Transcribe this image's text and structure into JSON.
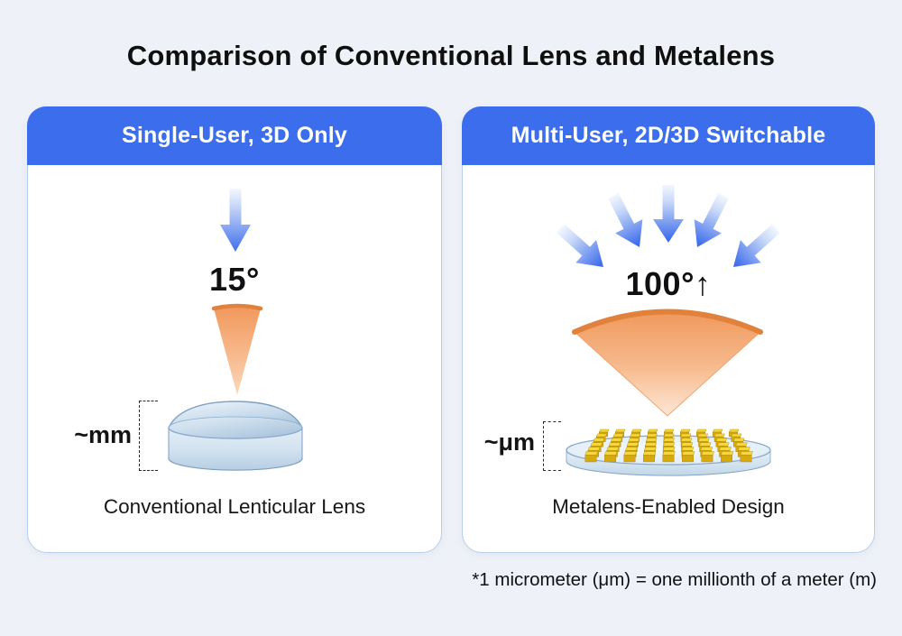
{
  "page": {
    "title": "Comparison of Conventional Lens and Metalens",
    "footnote": "*1 micrometer (μm) = one millionth of a meter (m)"
  },
  "colors": {
    "background": "#eef1f7",
    "header_blue": "#3c6dec",
    "arrow_blue": "#3f6eec",
    "orange_rim": "#e0813c",
    "orange_fill": "#f39e62",
    "glass_blue": "#bed3e6",
    "gold": "#d8a90c",
    "panel_border": "#b9cdec"
  },
  "left_panel": {
    "header": "Single-User, 3D Only",
    "angle_label": "15°",
    "scale_label": "~mm",
    "caption": "Conventional Lenticular Lens"
  },
  "right_panel": {
    "header": "Multi-User, 2D/3D Switchable",
    "angle_label": "100°↑",
    "scale_label": "~μm",
    "caption": "Metalens-Enabled Design"
  }
}
